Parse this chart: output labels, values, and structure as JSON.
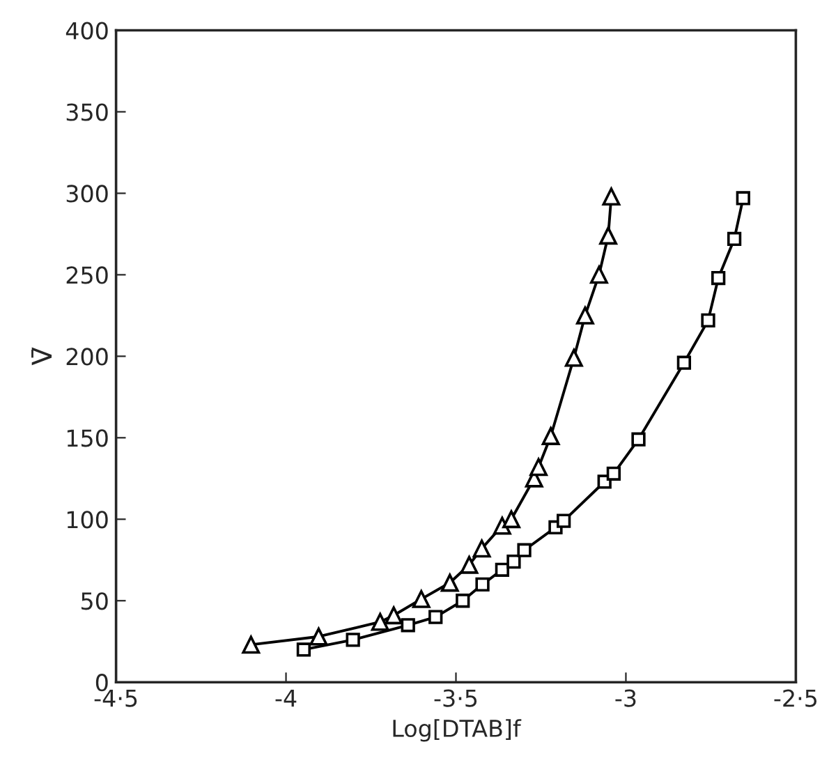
{
  "chart_data": {
    "type": "line",
    "xlabel": "Log[DTAB]f",
    "ylabel": "V̄",
    "xlim": [
      -4.5,
      -2.5
    ],
    "xticks": [
      {
        "value": -4.5,
        "label": "-4·5"
      },
      -4,
      {
        "value": -3.5,
        "label": "-3·5"
      },
      -3,
      {
        "value": -2.5,
        "label": "-2·5"
      }
    ],
    "ylim": [
      0,
      400
    ],
    "yticks": [
      0,
      50,
      100,
      150,
      200,
      250,
      300,
      350,
      400
    ],
    "grid": false,
    "line_style": "solid",
    "series": [
      {
        "color": "#000000",
        "marker": "triangle",
        "x": [
          -4.103,
          -3.904,
          -3.723,
          -3.683,
          -3.602,
          -3.518,
          -3.461,
          -3.424,
          -3.364,
          -3.337,
          -3.27,
          -3.257,
          -3.221,
          -3.153,
          -3.12,
          -3.079,
          -3.052,
          -3.043
        ],
        "values": [
          23,
          28,
          37,
          41,
          51,
          61,
          72,
          82,
          96,
          100,
          125,
          132,
          151,
          199,
          225,
          250,
          274,
          298
        ]
      },
      {
        "color": "#000000",
        "marker": "square",
        "x": [
          -3.948,
          -3.803,
          -3.641,
          -3.56,
          -3.48,
          -3.422,
          -3.364,
          -3.33,
          -3.299,
          -3.207,
          -3.183,
          -3.063,
          -3.036,
          -2.963,
          -2.829,
          -2.758,
          -2.728,
          -2.681,
          -2.655
        ],
        "values": [
          20,
          26,
          35,
          40,
          50,
          60,
          69,
          74,
          81,
          95,
          99,
          123,
          128,
          149,
          196,
          222,
          248,
          272,
          297
        ]
      }
    ]
  }
}
